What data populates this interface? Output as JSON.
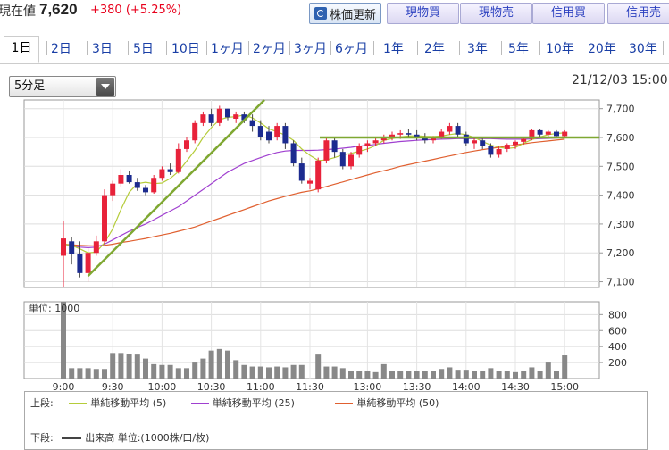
{
  "quote": {
    "label": "現在値",
    "price": "7,620",
    "change": "+380 (+5.25%)"
  },
  "toolbar": {
    "update_label": "株価更新",
    "buttons": [
      "現物買",
      "現物売",
      "信用買",
      "信用売"
    ]
  },
  "tabs": [
    "1日",
    "2日",
    "3日",
    "5日",
    "10日",
    "1ヶ月",
    "2ヶ月",
    "3ヶ月",
    "6ヶ月",
    "1年",
    "2年",
    "3年",
    "5年",
    "10年",
    "20年",
    "30年"
  ],
  "active_tab": "1日",
  "interval_select": {
    "value": "5分足"
  },
  "datetime": "21/12/03 15:00",
  "volume_panel_label": "単位: 1000",
  "legend": {
    "upper_label": "上段:",
    "lower_label": "下段:",
    "ma5": "単純移動平均 (5)",
    "ma25": "単純移動平均 (25)",
    "ma50": "単純移動平均 (50)",
    "volume": "出来高 単位:(1000株/口/枚)"
  },
  "colors": {
    "up": "#e8223a",
    "down": "#1c2b8f",
    "ma5": "#b5cc3a",
    "ma25": "#a040d0",
    "ma50": "#e06030",
    "trendline": "#7fa832",
    "volume": "#888888"
  },
  "chart_data": [
    {
      "type": "candlestick",
      "title": "",
      "y_ticks": [
        "7,700",
        "7,600",
        "7,500",
        "7,400",
        "7,300",
        "7,200",
        "7,100"
      ],
      "ylim": [
        7080,
        7730
      ],
      "x_ticks": [
        "9:00",
        "9:30",
        "10:00",
        "10:30",
        "11:00",
        "11:30",
        "13:00",
        "13:30",
        "14:00",
        "14:30",
        "15:00"
      ],
      "session_break_after_index": 30,
      "candles": [
        {
          "o": 7190,
          "h": 7310,
          "l": 7080,
          "c": 7250
        },
        {
          "o": 7240,
          "h": 7255,
          "l": 7160,
          "c": 7195
        },
        {
          "o": 7195,
          "h": 7240,
          "l": 7115,
          "c": 7130
        },
        {
          "o": 7130,
          "h": 7215,
          "l": 7100,
          "c": 7200
        },
        {
          "o": 7200,
          "h": 7260,
          "l": 7190,
          "c": 7240
        },
        {
          "o": 7240,
          "h": 7420,
          "l": 7230,
          "c": 7400
        },
        {
          "o": 7400,
          "h": 7450,
          "l": 7380,
          "c": 7440
        },
        {
          "o": 7440,
          "h": 7490,
          "l": 7430,
          "c": 7470
        },
        {
          "o": 7470,
          "h": 7485,
          "l": 7440,
          "c": 7445
        },
        {
          "o": 7445,
          "h": 7460,
          "l": 7415,
          "c": 7425
        },
        {
          "o": 7425,
          "h": 7435,
          "l": 7400,
          "c": 7410
        },
        {
          "o": 7410,
          "h": 7470,
          "l": 7405,
          "c": 7460
        },
        {
          "o": 7460,
          "h": 7500,
          "l": 7450,
          "c": 7490
        },
        {
          "o": 7490,
          "h": 7510,
          "l": 7470,
          "c": 7480
        },
        {
          "o": 7480,
          "h": 7580,
          "l": 7475,
          "c": 7560
        },
        {
          "o": 7560,
          "h": 7600,
          "l": 7550,
          "c": 7590
        },
        {
          "o": 7590,
          "h": 7660,
          "l": 7580,
          "c": 7650
        },
        {
          "o": 7650,
          "h": 7690,
          "l": 7640,
          "c": 7680
        },
        {
          "o": 7680,
          "h": 7700,
          "l": 7640,
          "c": 7650
        },
        {
          "o": 7650,
          "h": 7710,
          "l": 7640,
          "c": 7700
        },
        {
          "o": 7700,
          "h": 7700,
          "l": 7660,
          "c": 7670
        },
        {
          "o": 7665,
          "h": 7690,
          "l": 7650,
          "c": 7680
        },
        {
          "o": 7680,
          "h": 7690,
          "l": 7650,
          "c": 7660
        },
        {
          "o": 7660,
          "h": 7680,
          "l": 7620,
          "c": 7640
        },
        {
          "o": 7640,
          "h": 7660,
          "l": 7590,
          "c": 7600
        },
        {
          "o": 7620,
          "h": 7640,
          "l": 7580,
          "c": 7590
        },
        {
          "o": 7600,
          "h": 7650,
          "l": 7590,
          "c": 7640
        },
        {
          "o": 7640,
          "h": 7650,
          "l": 7560,
          "c": 7580
        },
        {
          "o": 7580,
          "h": 7590,
          "l": 7500,
          "c": 7510
        },
        {
          "o": 7510,
          "h": 7530,
          "l": 7440,
          "c": 7450
        },
        {
          "o": 7440,
          "h": 7460,
          "l": 7420,
          "c": 7450
        },
        {
          "o": 7420,
          "h": 7530,
          "l": 7410,
          "c": 7520
        },
        {
          "o": 7520,
          "h": 7600,
          "l": 7510,
          "c": 7590
        },
        {
          "o": 7590,
          "h": 7600,
          "l": 7530,
          "c": 7550
        },
        {
          "o": 7550,
          "h": 7560,
          "l": 7490,
          "c": 7500
        },
        {
          "o": 7500,
          "h": 7550,
          "l": 7490,
          "c": 7540
        },
        {
          "o": 7540,
          "h": 7580,
          "l": 7530,
          "c": 7570
        },
        {
          "o": 7570,
          "h": 7590,
          "l": 7550,
          "c": 7580
        },
        {
          "o": 7580,
          "h": 7600,
          "l": 7570,
          "c": 7590
        },
        {
          "o": 7590,
          "h": 7610,
          "l": 7580,
          "c": 7600
        },
        {
          "o": 7600,
          "h": 7620,
          "l": 7590,
          "c": 7610
        },
        {
          "o": 7610,
          "h": 7625,
          "l": 7595,
          "c": 7615
        },
        {
          "o": 7615,
          "h": 7630,
          "l": 7600,
          "c": 7610
        },
        {
          "o": 7610,
          "h": 7625,
          "l": 7590,
          "c": 7600
        },
        {
          "o": 7600,
          "h": 7615,
          "l": 7580,
          "c": 7590
        },
        {
          "o": 7590,
          "h": 7605,
          "l": 7580,
          "c": 7600
        },
        {
          "o": 7600,
          "h": 7630,
          "l": 7595,
          "c": 7620
        },
        {
          "o": 7620,
          "h": 7650,
          "l": 7610,
          "c": 7640
        },
        {
          "o": 7640,
          "h": 7650,
          "l": 7600,
          "c": 7610
        },
        {
          "o": 7610,
          "h": 7620,
          "l": 7570,
          "c": 7580
        },
        {
          "o": 7580,
          "h": 7600,
          "l": 7560,
          "c": 7590
        },
        {
          "o": 7590,
          "h": 7600,
          "l": 7560,
          "c": 7570
        },
        {
          "o": 7570,
          "h": 7580,
          "l": 7530,
          "c": 7540
        },
        {
          "o": 7540,
          "h": 7570,
          "l": 7530,
          "c": 7560
        },
        {
          "o": 7560,
          "h": 7580,
          "l": 7550,
          "c": 7575
        },
        {
          "o": 7575,
          "h": 7590,
          "l": 7560,
          "c": 7585
        },
        {
          "o": 7585,
          "h": 7600,
          "l": 7575,
          "c": 7595
        },
        {
          "o": 7595,
          "h": 7630,
          "l": 7590,
          "c": 7625
        },
        {
          "o": 7625,
          "h": 7630,
          "l": 7600,
          "c": 7610
        },
        {
          "o": 7610,
          "h": 7625,
          "l": 7600,
          "c": 7620
        },
        {
          "o": 7620,
          "h": 7625,
          "l": 7600,
          "c": 7605
        },
        {
          "o": 7605,
          "h": 7625,
          "l": 7600,
          "c": 7620
        }
      ],
      "ma5": [
        7230,
        7226,
        7214,
        7200,
        7203,
        7235,
        7283,
        7350,
        7410,
        7440,
        7445,
        7440,
        7442,
        7458,
        7482,
        7518,
        7555,
        7600,
        7634,
        7662,
        7670,
        7672,
        7678,
        7668,
        7650,
        7630,
        7620,
        7608,
        7590,
        7560,
        7538,
        7520,
        7522,
        7530,
        7540,
        7545,
        7552,
        7560,
        7572,
        7590,
        7596,
        7602,
        7605,
        7606,
        7604,
        7603,
        7605,
        7610,
        7614,
        7610,
        7600,
        7586,
        7574,
        7566,
        7562,
        7565,
        7580,
        7593,
        7602,
        7610,
        7614,
        7616
      ],
      "ma25": [
        7230,
        7225,
        7220,
        7218,
        7220,
        7230,
        7245,
        7260,
        7275,
        7288,
        7300,
        7315,
        7330,
        7345,
        7360,
        7380,
        7400,
        7420,
        7440,
        7460,
        7480,
        7495,
        7510,
        7520,
        7530,
        7540,
        7548,
        7553,
        7555,
        7555,
        7555,
        7556,
        7558,
        7560,
        7563,
        7566,
        7570,
        7573,
        7576,
        7580,
        7583,
        7586,
        7588,
        7590,
        7592,
        7593,
        7594,
        7595,
        7596,
        7596,
        7596,
        7596,
        7596,
        7595,
        7594,
        7594,
        7594,
        7595,
        7596,
        7597,
        7598,
        7600
      ],
      "ma50": [
        7230,
        7228,
        7226,
        7225,
        7224,
        7226,
        7230,
        7236,
        7240,
        7245,
        7250,
        7256,
        7262,
        7268,
        7275,
        7282,
        7290,
        7300,
        7310,
        7320,
        7330,
        7340,
        7350,
        7360,
        7370,
        7380,
        7388,
        7396,
        7403,
        7410,
        7415,
        7422,
        7430,
        7438,
        7446,
        7454,
        7462,
        7470,
        7478,
        7485,
        7492,
        7500,
        7506,
        7512,
        7518,
        7524,
        7530,
        7536,
        7542,
        7548,
        7553,
        7558,
        7562,
        7566,
        7570,
        7574,
        7578,
        7582,
        7585,
        7588,
        7591,
        7594
      ]
    },
    {
      "type": "bar",
      "title": "",
      "y_ticks": [
        "800",
        "600",
        "400",
        "200"
      ],
      "ylim": [
        0,
        960
      ],
      "values": [
        960,
        130,
        130,
        130,
        120,
        120,
        320,
        320,
        310,
        300,
        250,
        180,
        170,
        170,
        130,
        130,
        200,
        250,
        350,
        370,
        350,
        230,
        170,
        150,
        150,
        140,
        150,
        140,
        170,
        170,
        0,
        300,
        150,
        150,
        130,
        90,
        90,
        90,
        80,
        180,
        90,
        90,
        90,
        90,
        90,
        90,
        120,
        140,
        110,
        110,
        90,
        90,
        130,
        90,
        90,
        80,
        90,
        140,
        90,
        200,
        100,
        290
      ]
    }
  ]
}
